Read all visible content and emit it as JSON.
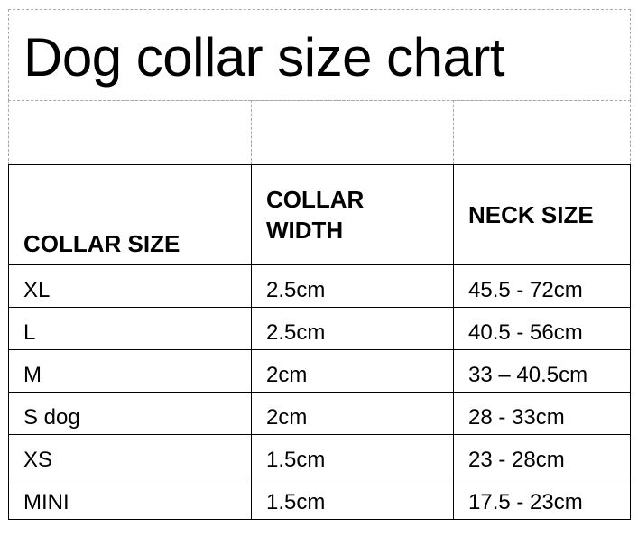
{
  "title": "Dog collar size chart",
  "table": {
    "headers": [
      "COLLAR SIZE",
      "COLLAR WIDTH",
      "NECK SIZE"
    ],
    "header_lines": {
      "collar_width": [
        "COLLAR",
        "WIDTH"
      ]
    },
    "rows": [
      [
        "XL",
        "2.5cm",
        "45.5 - 72cm"
      ],
      [
        "L",
        "2.5cm",
        "40.5 - 56cm"
      ],
      [
        "M",
        "2cm",
        "33 – 40.5cm"
      ],
      [
        "S dog",
        "2cm",
        "28 - 33cm"
      ],
      [
        "XS",
        "1.5cm",
        "23 - 28cm"
      ],
      [
        "MINI",
        "1.5cm",
        "17.5 - 23cm"
      ]
    ]
  }
}
